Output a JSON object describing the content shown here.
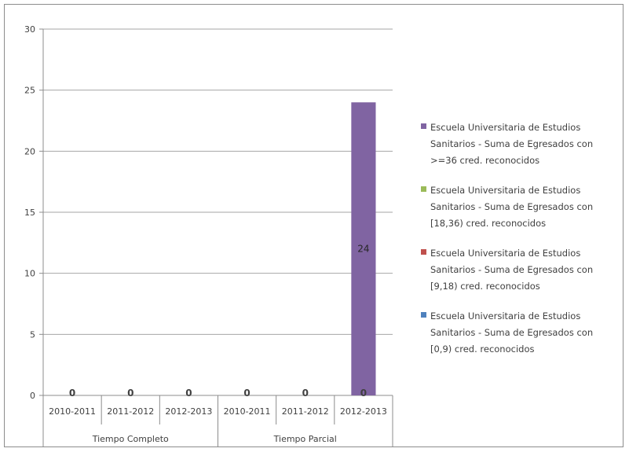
{
  "chart_data": {
    "type": "bar",
    "stacked": true,
    "ylim": [
      0,
      30
    ],
    "yticks": [
      "0",
      "5",
      "10",
      "15",
      "20",
      "25",
      "30"
    ],
    "grid": true,
    "legend_position": "right",
    "groups": [
      {
        "label": "Tiempo Completo",
        "categories": [
          "2010-2011",
          "2011-2012",
          "2012-2013"
        ]
      },
      {
        "label": "Tiempo Parcial",
        "categories": [
          "2010-2011",
          "2011-2012",
          "2012-2013"
        ]
      }
    ],
    "series": [
      {
        "name": "Escuela Universitaria de Estudios Sanitarios - Suma de Egresados con >=36 cred. reconocidos",
        "color": "#8064a2",
        "values": [
          0,
          0,
          0,
          0,
          0,
          24
        ]
      },
      {
        "name": "Escuela Universitaria de Estudios Sanitarios - Suma de Egresados con [18,36) cred. reconocidos",
        "color": "#9bbb59",
        "values": [
          0,
          0,
          0,
          0,
          0,
          0
        ]
      },
      {
        "name": "Escuela Universitaria de Estudios Sanitarios - Suma de Egresados con [9,18) cred. reconocidos",
        "color": "#c0504d",
        "values": [
          0,
          0,
          0,
          0,
          0,
          0
        ]
      },
      {
        "name": "Escuela Universitaria de Estudios Sanitarios - Suma de Egresados con [0,9) cred. reconocidos",
        "color": "#4f81bd",
        "values": [
          0,
          0,
          0,
          0,
          0,
          0
        ]
      }
    ],
    "data_labels": [
      "0",
      "0",
      "0",
      "0",
      "0",
      "0"
    ],
    "bar_label": "24"
  }
}
